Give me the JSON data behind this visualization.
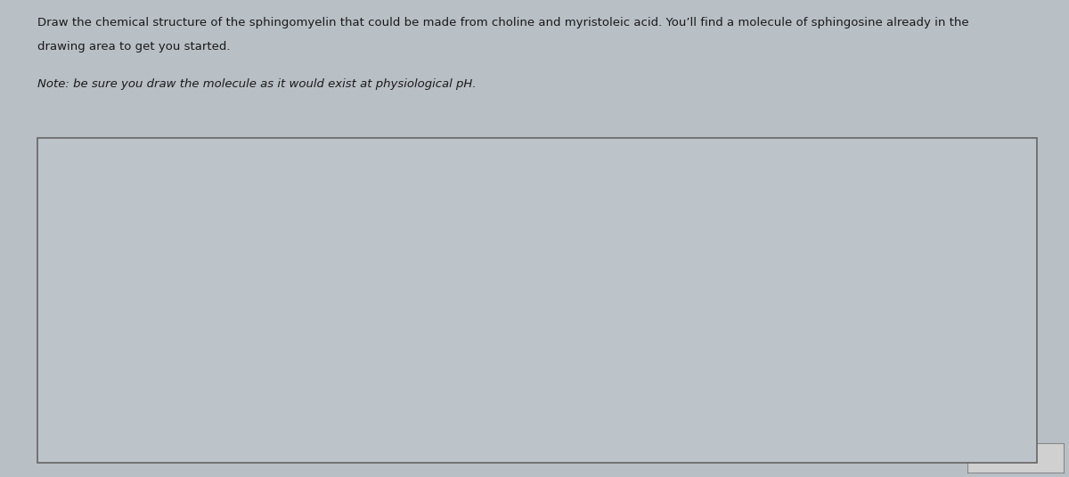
{
  "title_text1": "Draw the chemical structure of the sphingomyelin that could be made from choline and myristoleic acid. You’ll find a molecule of sphingosine already in the",
  "title_text2": "drawing area to get you started.",
  "note_text": "Note: be sure you draw the molecule as it would exist at physiological pH.",
  "outer_bg": "#b8bfc5",
  "box_bg": "#bcc3c9",
  "text_color": "#1a1a1a",
  "title_fontsize": 9.5,
  "note_fontsize": 9.5,
  "structure_color": "#1a1a1a",
  "label_fontsize": 10.5,
  "submit_color": "#d0d0d0"
}
